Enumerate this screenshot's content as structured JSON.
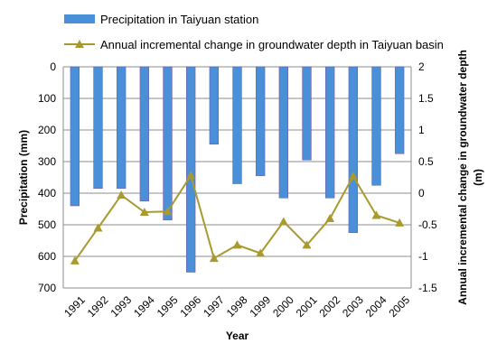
{
  "chart_data": {
    "type": "bar+line",
    "categories": [
      "1991",
      "1992",
      "1993",
      "1994",
      "1995",
      "1996",
      "1997",
      "1998",
      "1999",
      "2000",
      "2001",
      "2002",
      "2003",
      "2004",
      "2005"
    ],
    "series": [
      {
        "name": "Precipitation in Taiyuan station",
        "type": "bar",
        "axis": "left",
        "color": "#4a90d9",
        "values": [
          440,
          385,
          385,
          425,
          485,
          650,
          245,
          370,
          345,
          415,
          295,
          415,
          525,
          375,
          275
        ]
      },
      {
        "name": "Annual incremental change in groundwater depth in Taiyuan basin",
        "type": "line",
        "axis": "right",
        "color": "#a89a2e",
        "values": [
          -1.07,
          -0.55,
          -0.03,
          -0.3,
          -0.29,
          0.28,
          -1.03,
          -0.82,
          -0.95,
          -0.45,
          -0.82,
          -0.4,
          0.27,
          -0.35,
          -0.47
        ]
      }
    ],
    "y_left": {
      "label": "Precipitation (mm)",
      "ylim": [
        0,
        700
      ],
      "ticks": [
        "0",
        "100",
        "200",
        "300",
        "400",
        "500",
        "600",
        "700"
      ],
      "reversed": true
    },
    "y_right": {
      "label": "Annual incremental change in groundwater depth (m)",
      "ylim": [
        -1.5,
        2
      ],
      "ticks": [
        "2",
        "1.5",
        "1",
        "0.5",
        "0",
        "-0.5",
        "-1",
        "-1.5"
      ]
    },
    "xlabel": "Year",
    "grid": true,
    "legend": "top-left"
  }
}
